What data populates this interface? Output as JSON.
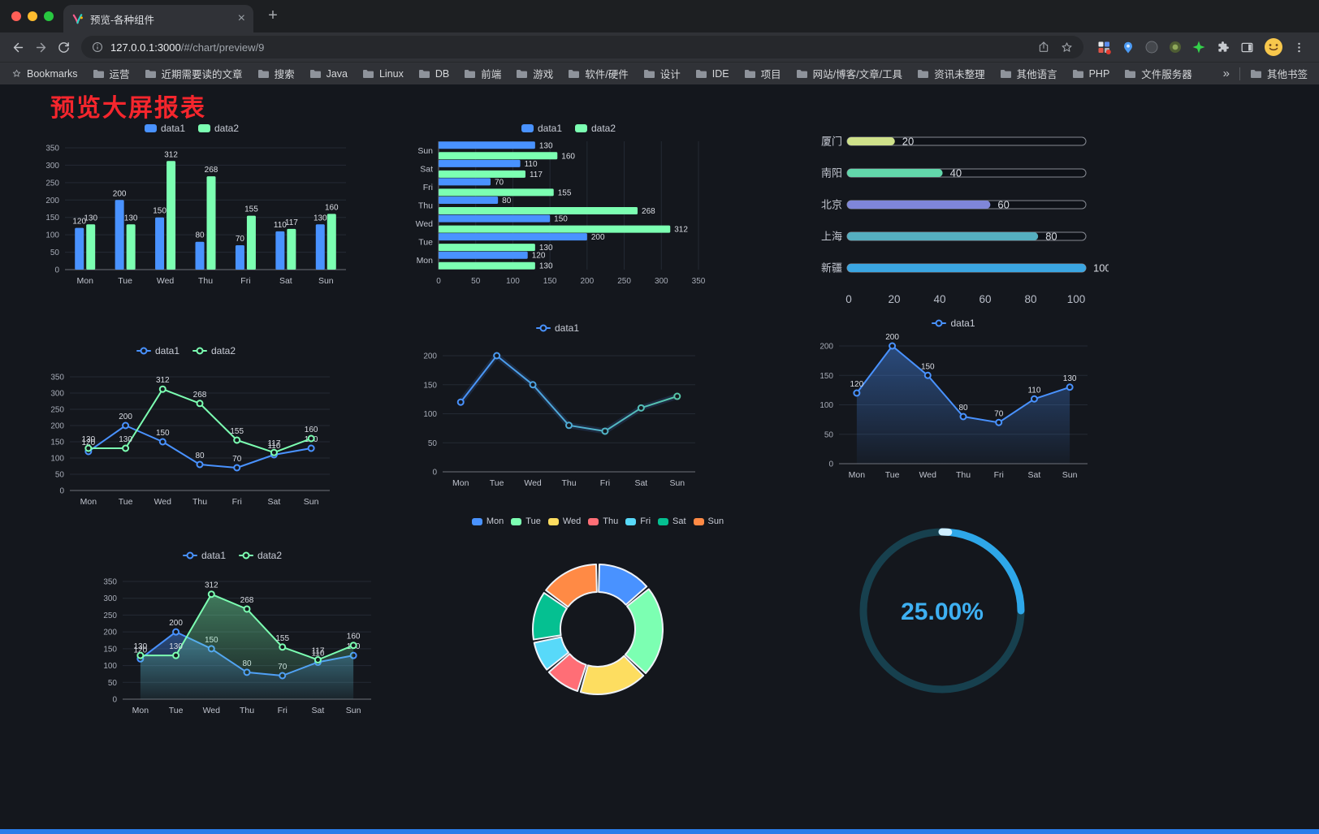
{
  "browser": {
    "tab": {
      "title": "预览-各种组件",
      "close": "×"
    },
    "new_tab": "+",
    "address": {
      "host": "127.0.0.1:3000",
      "path": "/#/chart/preview/9"
    },
    "bookmarks_label": "Bookmarks",
    "bookmarks": [
      "运营",
      "近期需要读的文章",
      "搜索",
      "Java",
      "Linux",
      "DB",
      "前端",
      "游戏",
      "软件/硬件",
      "设计",
      "IDE",
      "项目",
      "网站/博客/文章/工具",
      "资讯未整理",
      "其他语言",
      "PHP",
      "文件服务器"
    ],
    "bookmarks_overflow": "»",
    "other_bookmarks": "其他书签"
  },
  "page": {
    "title": "预览大屏报表"
  },
  "theme": {
    "bg": "#14171d",
    "grid": "#242a34",
    "axis_line": "#6E7079",
    "axis_text": "#a6abb6",
    "cat_text": "#bfc3cd",
    "value_label": "#dadde4",
    "legend_text": "#c8ccd6",
    "title_red": "#f5262d",
    "accent_blue": "#4992ff",
    "accent_green": "#7cffb2"
  },
  "charts": {
    "bar_grouped": {
      "type": "bar",
      "categories": [
        "Mon",
        "Tue",
        "Wed",
        "Thu",
        "Fri",
        "Sat",
        "Sun"
      ],
      "series": [
        {
          "name": "data1",
          "color": "#4992ff",
          "values": [
            120,
            200,
            150,
            80,
            70,
            110,
            130
          ]
        },
        {
          "name": "data2",
          "color": "#7cffb2",
          "values": [
            130,
            130,
            312,
            268,
            155,
            117,
            160
          ]
        }
      ],
      "ylim": [
        0,
        350
      ],
      "yticks": [
        0,
        50,
        100,
        150,
        200,
        250,
        300,
        350
      ]
    },
    "bar_horizontal": {
      "type": "hbar",
      "categories": [
        "Mon",
        "Tue",
        "Wed",
        "Thu",
        "Fri",
        "Sat",
        "Sun"
      ],
      "series": [
        {
          "name": "data1",
          "color": "#4992ff",
          "values": [
            120,
            200,
            150,
            80,
            70,
            110,
            130
          ]
        },
        {
          "name": "data2",
          "color": "#7cffb2",
          "values": [
            130,
            130,
            312,
            268,
            155,
            117,
            160
          ]
        }
      ],
      "xlim": [
        0,
        350
      ],
      "xticks": [
        0,
        50,
        100,
        150,
        200,
        250,
        300,
        350
      ]
    },
    "city_progress": {
      "type": "progress",
      "max": 100,
      "xticks": [
        0,
        20,
        40,
        60,
        80,
        100
      ],
      "rows": [
        {
          "label": "厦门",
          "value": 20,
          "color": "#cfe18a"
        },
        {
          "label": "南阳",
          "value": 40,
          "color": "#62d7ab"
        },
        {
          "label": "北京",
          "value": 60,
          "color": "#7f86d9"
        },
        {
          "label": "上海",
          "value": 80,
          "color": "#55afc0"
        },
        {
          "label": "新疆",
          "value": 100,
          "color": "#3ba6e2"
        }
      ]
    },
    "line_two": {
      "type": "line",
      "categories": [
        "Mon",
        "Tue",
        "Wed",
        "Thu",
        "Fri",
        "Sat",
        "Sun"
      ],
      "series": [
        {
          "name": "data1",
          "color": "#4992ff",
          "values": [
            120,
            200,
            150,
            80,
            70,
            110,
            130
          ]
        },
        {
          "name": "data2",
          "color": "#7cffb2",
          "values": [
            130,
            130,
            312,
            268,
            155,
            117,
            160
          ]
        }
      ],
      "ylim": [
        0,
        350
      ],
      "yticks": [
        0,
        50,
        100,
        150,
        200,
        250,
        300,
        350
      ],
      "labels": true
    },
    "line_single": {
      "type": "line",
      "categories": [
        "Mon",
        "Tue",
        "Wed",
        "Thu",
        "Fri",
        "Sat",
        "Sun"
      ],
      "series": [
        {
          "name": "data1",
          "color": "#4992ff",
          "gradient": [
            "#4992ff",
            "#56c6a9"
          ],
          "values": [
            120,
            200,
            150,
            80,
            70,
            110,
            130
          ]
        }
      ],
      "ylim": [
        0,
        200
      ],
      "yticks": [
        0,
        50,
        100,
        150,
        200
      ],
      "labels": false,
      "glow": true
    },
    "area_single": {
      "type": "line",
      "categories": [
        "Mon",
        "Tue",
        "Wed",
        "Thu",
        "Fri",
        "Sat",
        "Sun"
      ],
      "series": [
        {
          "name": "data1",
          "color": "#4992ff",
          "area": true,
          "values": [
            120,
            200,
            150,
            80,
            70,
            110,
            130
          ]
        }
      ],
      "ylim": [
        0,
        200
      ],
      "yticks": [
        0,
        50,
        100,
        150,
        200
      ],
      "labels": true
    },
    "area_two": {
      "type": "line",
      "categories": [
        "Mon",
        "Tue",
        "Wed",
        "Thu",
        "Fri",
        "Sat",
        "Sun"
      ],
      "series": [
        {
          "name": "data1",
          "color": "#4992ff",
          "area": true,
          "values": [
            120,
            200,
            150,
            80,
            70,
            110,
            130
          ]
        },
        {
          "name": "data2",
          "color": "#7cffb2",
          "area": true,
          "values": [
            130,
            130,
            312,
            268,
            155,
            117,
            160
          ]
        }
      ],
      "ylim": [
        0,
        350
      ],
      "yticks": [
        0,
        50,
        100,
        150,
        200,
        250,
        300,
        350
      ],
      "labels": true
    },
    "week_donut": {
      "type": "donut",
      "inner_radius": 46,
      "outer_radius": 80,
      "border_color": "#eef2f8",
      "items": [
        {
          "name": "Mon",
          "value": 120,
          "color": "#4992ff"
        },
        {
          "name": "Tue",
          "value": 200,
          "color": "#7cffb2"
        },
        {
          "name": "Wed",
          "value": 150,
          "color": "#fddd60"
        },
        {
          "name": "Thu",
          "value": 80,
          "color": "#ff6e76"
        },
        {
          "name": "Fri",
          "value": 70,
          "color": "#58d9f9"
        },
        {
          "name": "Sat",
          "value": 110,
          "color": "#05c091"
        },
        {
          "name": "Sun",
          "value": 130,
          "color": "#ff8a45"
        }
      ]
    },
    "percent_gauge": {
      "type": "gauge",
      "value": 25,
      "max": 100,
      "display": "25.00%",
      "arc_color": "#2ea7e9",
      "track_color": "#17404e",
      "tip_color": "#cfeeff",
      "text_color": "#3eb0f2"
    }
  }
}
